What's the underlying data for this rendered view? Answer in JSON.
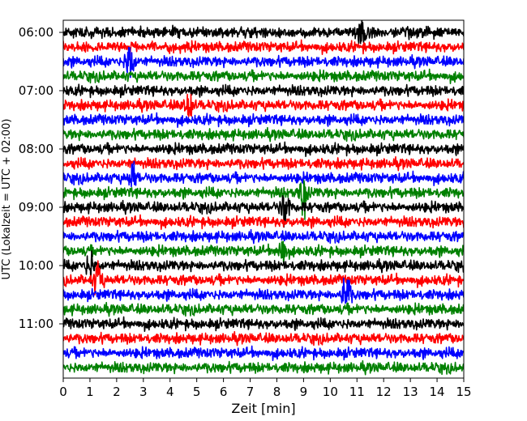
{
  "chart_data": {
    "type": "line",
    "title": "",
    "xlabel": "Zeit  [min]",
    "ylabel": "UTC (Lokalzeit = UTC + 02:00)",
    "xlim": [
      0,
      15
    ],
    "x_ticks": [
      0,
      1,
      2,
      3,
      4,
      5,
      6,
      7,
      8,
      9,
      10,
      11,
      12,
      13,
      14,
      15
    ],
    "y_tick_labels": [
      "06:00",
      "07:00",
      "08:00",
      "09:00",
      "10:00",
      "11:00"
    ],
    "trace_interval_minutes": 15,
    "trace_start_times": [
      "06:00",
      "06:15",
      "06:30",
      "06:45",
      "07:00",
      "07:15",
      "07:30",
      "07:45",
      "08:00",
      "08:15",
      "08:30",
      "08:45",
      "09:00",
      "09:15",
      "09:30",
      "09:45",
      "10:00",
      "10:15",
      "10:30",
      "10:45",
      "11:00",
      "11:15",
      "11:30",
      "11:45"
    ],
    "trace_color_cycle": [
      "#000000",
      "#ff0000",
      "#0000ff",
      "#008000"
    ],
    "grid": false,
    "legend": "none",
    "events": [
      {
        "trace": "06:00",
        "minute": 11.2,
        "amplitude": 1.6
      },
      {
        "trace": "06:30",
        "minute": 2.5,
        "amplitude": 2.2
      },
      {
        "trace": "07:15",
        "minute": 4.7,
        "amplitude": 1.6
      },
      {
        "trace": "08:30",
        "minute": 2.6,
        "amplitude": 1.3
      },
      {
        "trace": "08:45",
        "minute": 9.0,
        "amplitude": 1.8
      },
      {
        "trace": "09:00",
        "minute": 8.3,
        "amplitude": 1.8
      },
      {
        "trace": "09:45",
        "minute": 8.2,
        "amplitude": 1.7
      },
      {
        "trace": "10:00",
        "minute": 1.0,
        "amplitude": 1.4
      },
      {
        "trace": "10:15",
        "minute": 1.3,
        "amplitude": 1.6
      },
      {
        "trace": "10:30",
        "minute": 10.6,
        "amplitude": 2.4
      }
    ]
  }
}
